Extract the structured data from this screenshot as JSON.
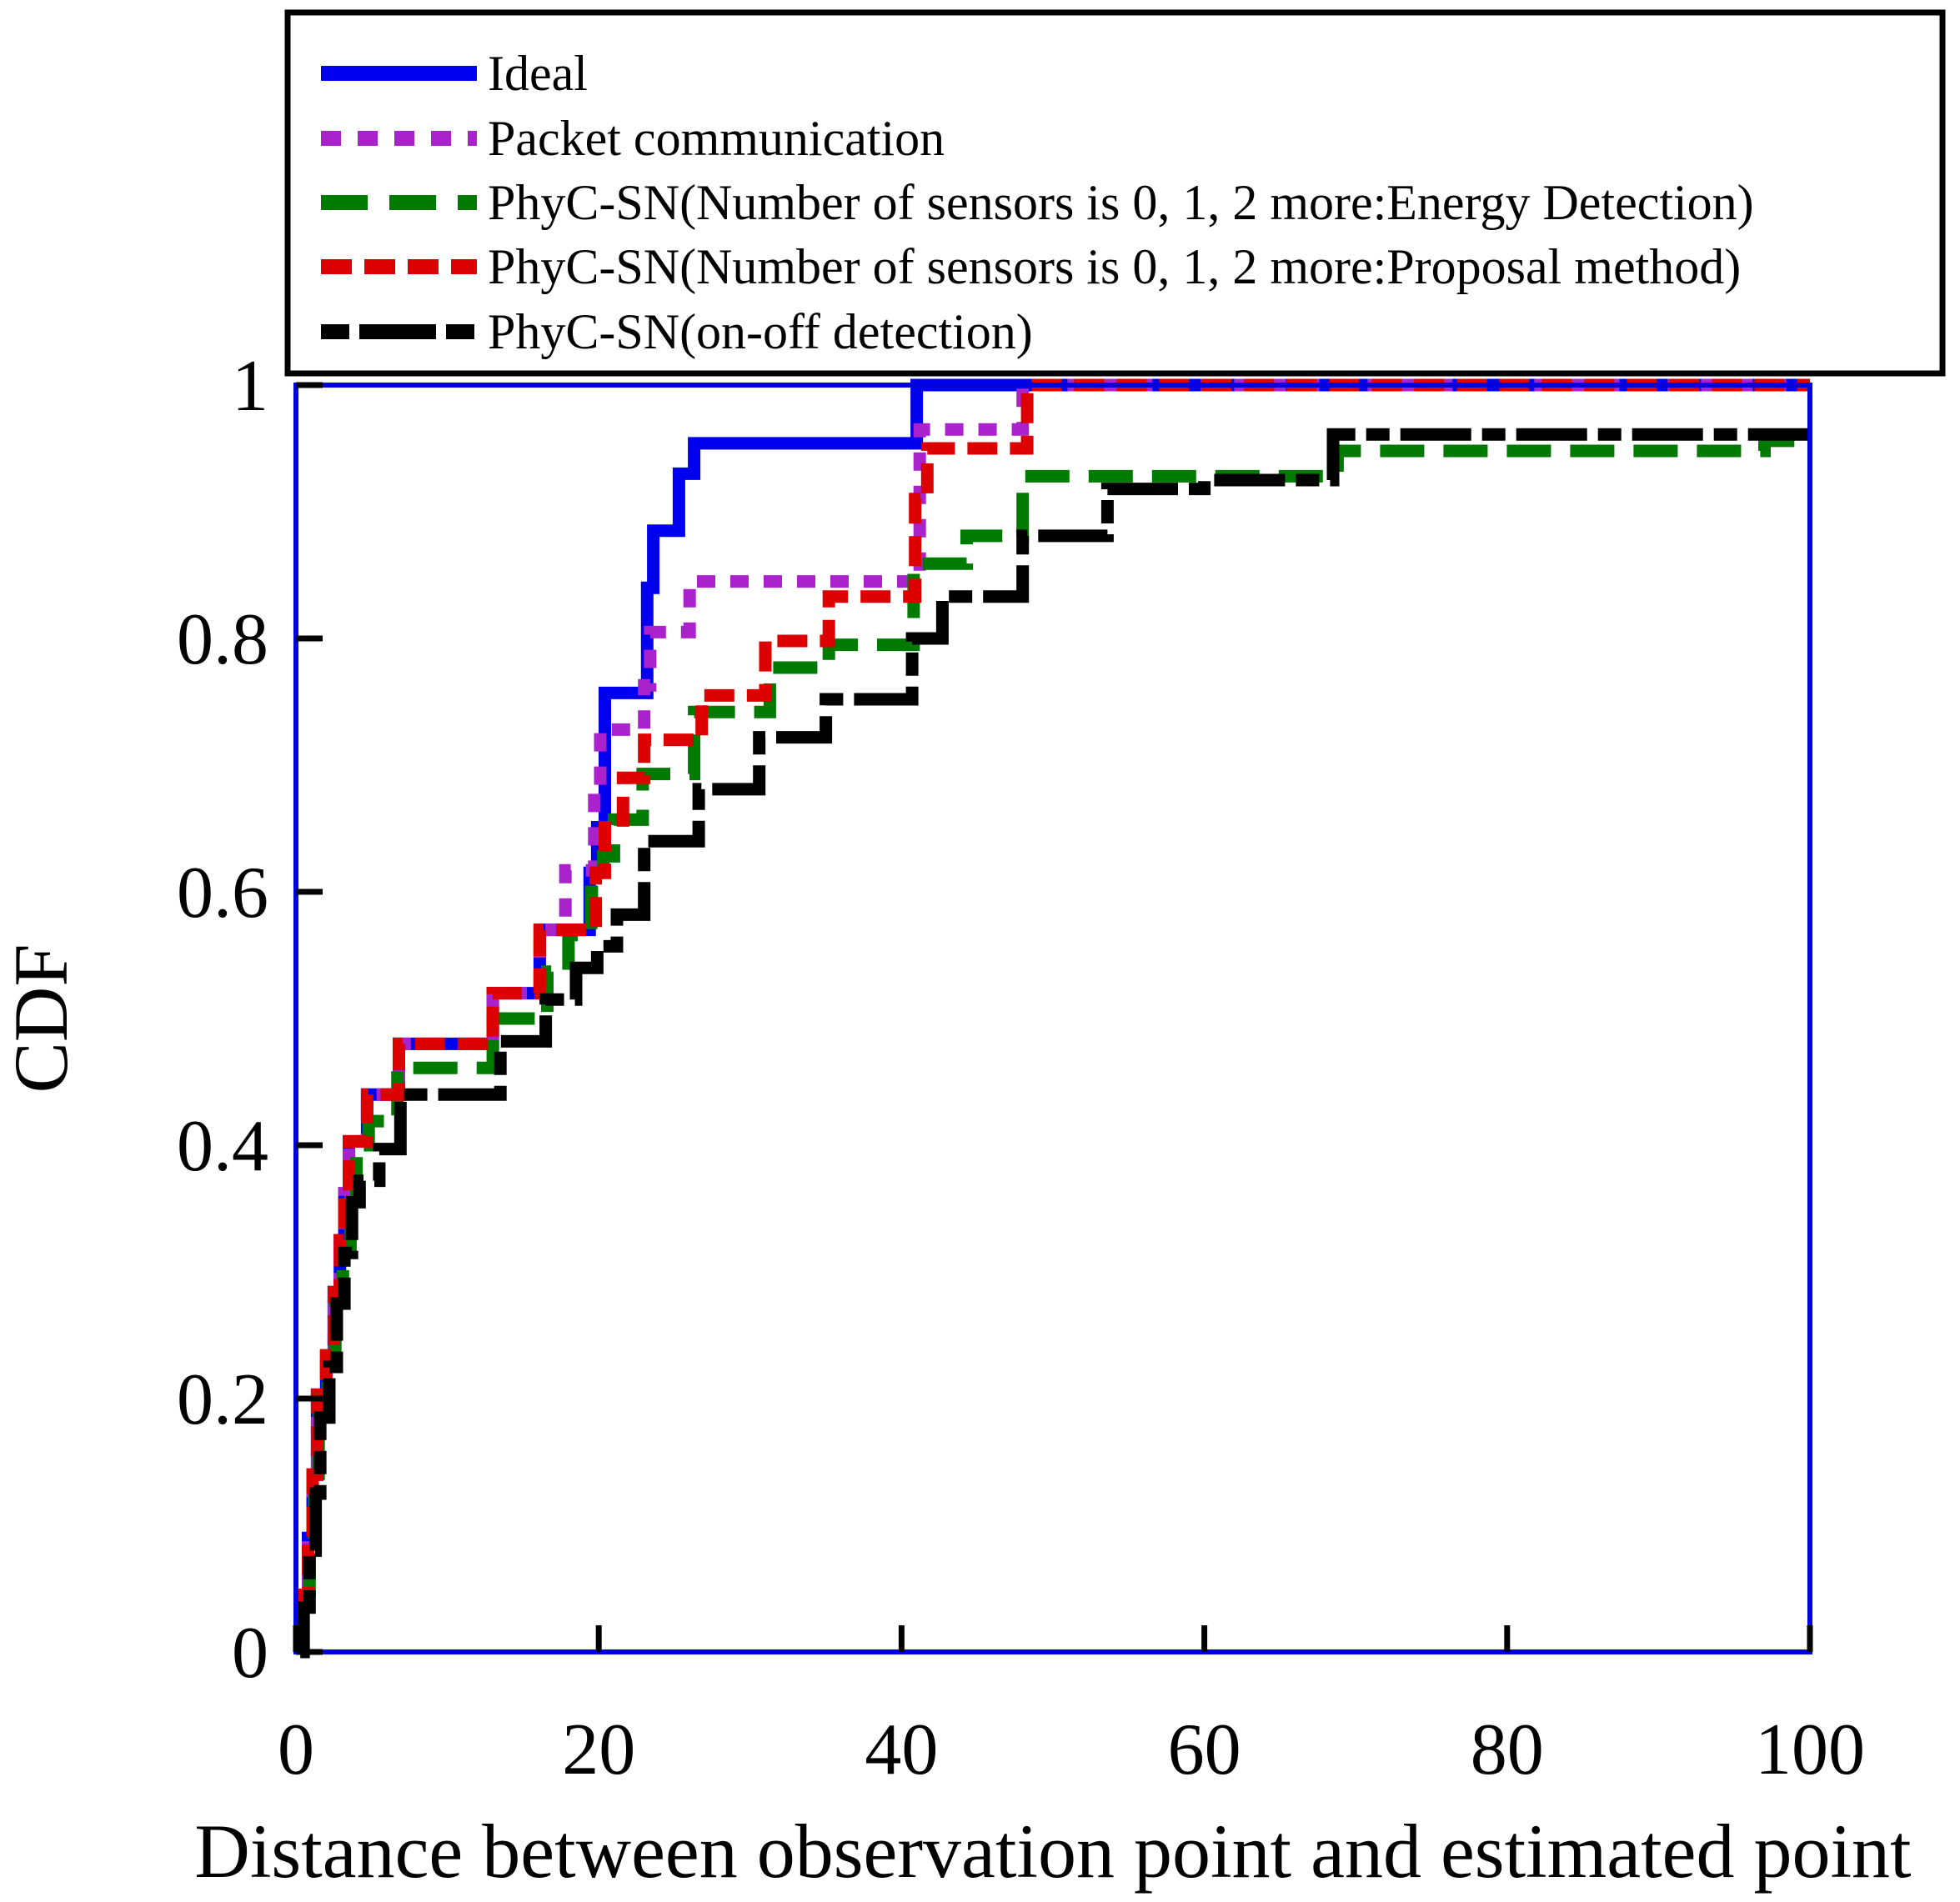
{
  "chart_data": {
    "type": "line",
    "subtype": "cdf-step-plot",
    "title": "",
    "xlabel": "Distance between observation point and estimated point",
    "ylabel": "CDF",
    "xlim": [
      0,
      100
    ],
    "ylim": [
      0,
      1
    ],
    "x_ticks": [
      0,
      20,
      40,
      60,
      80,
      100
    ],
    "y_ticks": [
      0,
      0.2,
      0.4,
      0.6,
      0.8,
      1
    ],
    "y_tick_labels": [
      "0",
      "0.2",
      "0.4",
      "0.6",
      "0.8",
      "1"
    ],
    "x_tick_labels": [
      "0",
      "20",
      "40",
      "60",
      "80",
      "100"
    ],
    "grid": false,
    "legend_position": "top, boxed, above plot area",
    "frame_color": "#0000DD",
    "background_color": "#FFFFFF",
    "series": [
      {
        "name": "Ideal",
        "color": "#0000EE",
        "line_style": "solid",
        "steps": [
          [
            0.4,
            0.045
          ],
          [
            0.8,
            0.09
          ],
          [
            1.1,
            0.14
          ],
          [
            1.4,
            0.203
          ],
          [
            2.0,
            0.234
          ],
          [
            2.5,
            0.284
          ],
          [
            2.9,
            0.325
          ],
          [
            3.2,
            0.362
          ],
          [
            3.5,
            0.403
          ],
          [
            4.7,
            0.44
          ],
          [
            6.8,
            0.48
          ],
          [
            13.0,
            0.52
          ],
          [
            16.1,
            0.57
          ],
          [
            19.4,
            0.615
          ],
          [
            19.9,
            0.651
          ],
          [
            20.4,
            0.757
          ],
          [
            23.2,
            0.84
          ],
          [
            23.6,
            0.885
          ],
          [
            25.3,
            0.93
          ],
          [
            26.3,
            0.954
          ],
          [
            41.0,
            1.0
          ]
        ]
      },
      {
        "name": "Packet communication",
        "color": "#AA22CC",
        "line_style": "dotted",
        "steps": [
          [
            0.4,
            0.045
          ],
          [
            0.8,
            0.09
          ],
          [
            1.1,
            0.14
          ],
          [
            1.4,
            0.203
          ],
          [
            2.0,
            0.234
          ],
          [
            2.5,
            0.284
          ],
          [
            2.9,
            0.325
          ],
          [
            3.2,
            0.362
          ],
          [
            3.5,
            0.403
          ],
          [
            4.7,
            0.44
          ],
          [
            6.8,
            0.48
          ],
          [
            13.0,
            0.52
          ],
          [
            16.1,
            0.57
          ],
          [
            17.8,
            0.617
          ],
          [
            19.7,
            0.68
          ],
          [
            20.1,
            0.728
          ],
          [
            23.0,
            0.763
          ],
          [
            23.4,
            0.805
          ],
          [
            26.0,
            0.845
          ],
          [
            41.2,
            0.965
          ],
          [
            48.0,
            1.0
          ]
        ]
      },
      {
        "name": "PhyC-SN(Number of sensors is 0, 1, 2 more:Energy Detection)",
        "color": "#007A00",
        "line_style": "long-dash",
        "steps": [
          [
            0.5,
            0.04
          ],
          [
            0.9,
            0.085
          ],
          [
            1.2,
            0.13
          ],
          [
            1.5,
            0.19
          ],
          [
            2.1,
            0.23
          ],
          [
            2.6,
            0.28
          ],
          [
            3.1,
            0.32
          ],
          [
            3.6,
            0.36
          ],
          [
            4.0,
            0.4
          ],
          [
            4.8,
            0.419
          ],
          [
            6.7,
            0.461
          ],
          [
            13.0,
            0.5
          ],
          [
            16.6,
            0.537
          ],
          [
            18.0,
            0.566
          ],
          [
            19.5,
            0.6
          ],
          [
            20.3,
            0.628
          ],
          [
            21.0,
            0.657
          ],
          [
            22.9,
            0.693
          ],
          [
            26.3,
            0.742
          ],
          [
            31.3,
            0.777
          ],
          [
            35.2,
            0.795
          ],
          [
            40.8,
            0.859
          ],
          [
            44.3,
            0.881
          ],
          [
            48.0,
            0.928
          ],
          [
            68.8,
            0.948
          ],
          [
            97.0,
            0.956
          ]
        ]
      },
      {
        "name": "PhyC-SN(Number of sensors is 0, 1, 2 more:Proposal method)",
        "color": "#DD0000",
        "line_style": "dash",
        "steps": [
          [
            0.4,
            0.045
          ],
          [
            0.8,
            0.09
          ],
          [
            1.1,
            0.14
          ],
          [
            1.4,
            0.203
          ],
          [
            2.0,
            0.234
          ],
          [
            2.5,
            0.284
          ],
          [
            2.9,
            0.325
          ],
          [
            3.2,
            0.362
          ],
          [
            3.5,
            0.403
          ],
          [
            4.7,
            0.44
          ],
          [
            6.8,
            0.48
          ],
          [
            13.0,
            0.52
          ],
          [
            16.1,
            0.57
          ],
          [
            19.8,
            0.615
          ],
          [
            20.4,
            0.651
          ],
          [
            21.6,
            0.69
          ],
          [
            23.0,
            0.72
          ],
          [
            26.8,
            0.755
          ],
          [
            31.0,
            0.798
          ],
          [
            35.2,
            0.833
          ],
          [
            40.9,
            0.91
          ],
          [
            41.7,
            0.95
          ],
          [
            48.3,
            1.0
          ]
        ]
      },
      {
        "name": "PhyC-SN(on-off detection)",
        "color": "#000000",
        "line_style": "dash-dot",
        "steps": [
          [
            0.5,
            0.035
          ],
          [
            0.9,
            0.08
          ],
          [
            1.3,
            0.125
          ],
          [
            1.6,
            0.185
          ],
          [
            2.2,
            0.225
          ],
          [
            2.7,
            0.275
          ],
          [
            3.2,
            0.315
          ],
          [
            3.7,
            0.355
          ],
          [
            4.2,
            0.372
          ],
          [
            5.5,
            0.397
          ],
          [
            6.9,
            0.44
          ],
          [
            13.5,
            0.482
          ],
          [
            16.5,
            0.515
          ],
          [
            18.5,
            0.54
          ],
          [
            19.9,
            0.557
          ],
          [
            21.2,
            0.582
          ],
          [
            23.0,
            0.64
          ],
          [
            26.6,
            0.681
          ],
          [
            30.6,
            0.722
          ],
          [
            35.0,
            0.752
          ],
          [
            40.7,
            0.8
          ],
          [
            42.7,
            0.833
          ],
          [
            48.0,
            0.881
          ],
          [
            53.6,
            0.918
          ],
          [
            60.0,
            0.925
          ],
          [
            68.5,
            0.961
          ]
        ]
      }
    ]
  }
}
